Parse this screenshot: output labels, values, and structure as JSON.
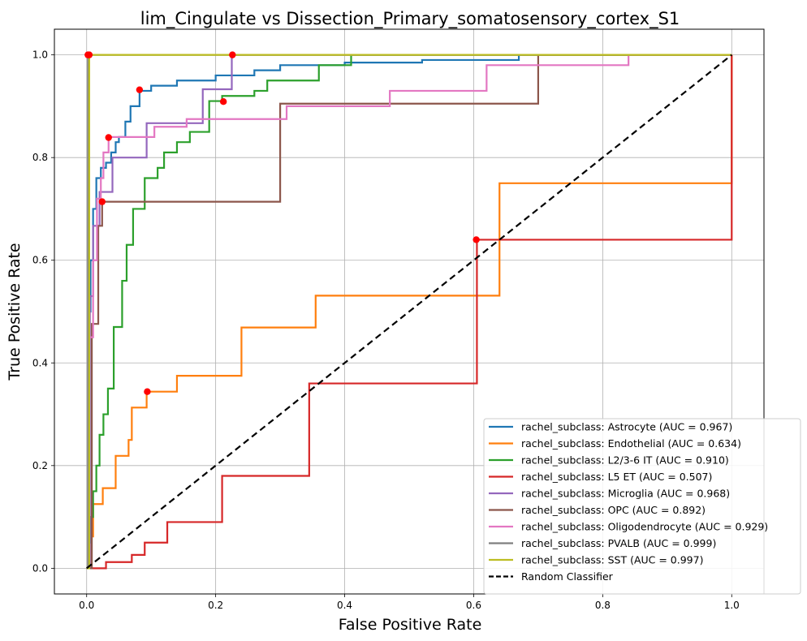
{
  "chart_data": {
    "type": "line",
    "title": "lim_Cingulate vs Dissection_Primary_somatosensory_cortex_S1",
    "xlabel": "False Positive Rate",
    "ylabel": "True Positive Rate",
    "xlim": [
      -0.05,
      1.05
    ],
    "ylim": [
      -0.05,
      1.05
    ],
    "xticks": [
      "0.0",
      "0.2",
      "0.4",
      "0.6",
      "0.8",
      "1.0"
    ],
    "yticks": [
      "0.0",
      "0.2",
      "0.4",
      "0.6",
      "0.8",
      "1.0"
    ],
    "grid": true,
    "legend_position": "lower-right",
    "series": [
      {
        "name": "rachel_subclass: Astrocyte (AUC = 0.967)",
        "color": "#1f77b4",
        "x": [
          0,
          0.003,
          0.003,
          0.006,
          0.006,
          0.01,
          0.01,
          0.015,
          0.015,
          0.022,
          0.022,
          0.03,
          0.03,
          0.038,
          0.038,
          0.045,
          0.045,
          0.05,
          0.05,
          0.06,
          0.06,
          0.068,
          0.068,
          0.082,
          0.082,
          0.1,
          0.1,
          0.14,
          0.14,
          0.2,
          0.2,
          0.26,
          0.26,
          0.3,
          0.3,
          0.4,
          0.4,
          0.52,
          0.52,
          0.67,
          0.67,
          1.0
        ],
        "y": [
          0,
          0,
          0.5,
          0.5,
          0.6,
          0.6,
          0.7,
          0.7,
          0.76,
          0.76,
          0.78,
          0.78,
          0.79,
          0.79,
          0.81,
          0.81,
          0.83,
          0.83,
          0.84,
          0.84,
          0.87,
          0.87,
          0.9,
          0.9,
          0.93,
          0.93,
          0.94,
          0.94,
          0.95,
          0.95,
          0.96,
          0.96,
          0.97,
          0.97,
          0.98,
          0.98,
          0.985,
          0.985,
          0.99,
          0.99,
          1.0,
          1.0
        ]
      },
      {
        "name": "rachel_subclass: Endothelial (AUC = 0.634)",
        "color": "#ff7f0e",
        "x": [
          0,
          0.005,
          0.005,
          0.01,
          0.01,
          0.025,
          0.025,
          0.045,
          0.045,
          0.065,
          0.065,
          0.07,
          0.07,
          0.093,
          0.093,
          0.14,
          0.14,
          0.24,
          0.24,
          0.355,
          0.355,
          0.64,
          0.64,
          1.0,
          1.0
        ],
        "y": [
          0,
          0,
          0.062,
          0.062,
          0.125,
          0.125,
          0.156,
          0.156,
          0.219,
          0.219,
          0.25,
          0.25,
          0.313,
          0.313,
          0.344,
          0.344,
          0.375,
          0.375,
          0.469,
          0.469,
          0.531,
          0.531,
          0.75,
          0.75,
          1.0
        ]
      },
      {
        "name": "rachel_subclass: L2/3-6 IT (AUC = 0.910)",
        "color": "#2ca02c",
        "x": [
          0,
          0.003,
          0.003,
          0.006,
          0.006,
          0.01,
          0.01,
          0.015,
          0.015,
          0.02,
          0.02,
          0.026,
          0.026,
          0.033,
          0.033,
          0.042,
          0.042,
          0.055,
          0.055,
          0.062,
          0.062,
          0.072,
          0.072,
          0.09,
          0.09,
          0.11,
          0.11,
          0.12,
          0.12,
          0.14,
          0.14,
          0.16,
          0.16,
          0.19,
          0.19,
          0.21,
          0.21,
          0.26,
          0.26,
          0.28,
          0.28,
          0.36,
          0.36,
          0.41,
          0.41,
          1.0
        ],
        "y": [
          0,
          0,
          0.05,
          0.05,
          0.1,
          0.1,
          0.15,
          0.15,
          0.2,
          0.2,
          0.26,
          0.26,
          0.3,
          0.3,
          0.35,
          0.35,
          0.47,
          0.47,
          0.56,
          0.56,
          0.63,
          0.63,
          0.7,
          0.7,
          0.76,
          0.76,
          0.78,
          0.78,
          0.81,
          0.81,
          0.83,
          0.83,
          0.85,
          0.85,
          0.91,
          0.91,
          0.92,
          0.92,
          0.93,
          0.93,
          0.95,
          0.95,
          0.98,
          0.98,
          1.0,
          1.0
        ]
      },
      {
        "name": "rachel_subclass: L5 ET (AUC = 0.507)",
        "color": "#d62728",
        "x": [
          0,
          0.03,
          0.03,
          0.07,
          0.07,
          0.09,
          0.09,
          0.125,
          0.125,
          0.21,
          0.21,
          0.345,
          0.345,
          0.605,
          0.605,
          1.0,
          1.0
        ],
        "y": [
          0,
          0,
          0.012,
          0.012,
          0.026,
          0.026,
          0.05,
          0.05,
          0.09,
          0.09,
          0.18,
          0.18,
          0.36,
          0.36,
          0.64,
          0.64,
          1.0
        ]
      },
      {
        "name": "rachel_subclass: Microglia (AUC = 0.968)",
        "color": "#9467bd",
        "x": [
          0,
          0.005,
          0.005,
          0.01,
          0.01,
          0.02,
          0.02,
          0.04,
          0.04,
          0.046,
          0.046,
          0.093,
          0.093,
          0.18,
          0.18,
          0.225,
          0.225,
          1.0
        ],
        "y": [
          0,
          0,
          0.53,
          0.53,
          0.667,
          0.667,
          0.733,
          0.733,
          0.8,
          0.8,
          0.8,
          0.8,
          0.867,
          0.867,
          0.933,
          0.933,
          1.0,
          1.0
        ]
      },
      {
        "name": "rachel_subclass: OPC (AUC = 0.892)",
        "color": "#8c564b",
        "x": [
          0,
          0.008,
          0.008,
          0.018,
          0.018,
          0.024,
          0.024,
          0.3,
          0.3,
          0.7,
          0.7,
          1.0
        ],
        "y": [
          0,
          0,
          0.476,
          0.476,
          0.667,
          0.667,
          0.714,
          0.714,
          0.905,
          0.905,
          1.0,
          1.0
        ]
      },
      {
        "name": "rachel_subclass: Oligodendrocyte (AUC = 0.929)",
        "color": "#e377c2",
        "x": [
          0,
          0.004,
          0.004,
          0.01,
          0.01,
          0.016,
          0.016,
          0.022,
          0.022,
          0.026,
          0.026,
          0.034,
          0.034,
          0.07,
          0.07,
          0.105,
          0.105,
          0.155,
          0.155,
          0.31,
          0.31,
          0.47,
          0.47,
          0.62,
          0.62,
          0.84,
          0.84,
          1.0
        ],
        "y": [
          0,
          0,
          0.45,
          0.45,
          0.6,
          0.6,
          0.72,
          0.72,
          0.76,
          0.76,
          0.81,
          0.81,
          0.84,
          0.84,
          0.84,
          0.84,
          0.86,
          0.86,
          0.875,
          0.875,
          0.9,
          0.9,
          0.93,
          0.93,
          0.98,
          0.98,
          1.0,
          1.0
        ]
      },
      {
        "name": "rachel_subclass: PVALB (AUC = 0.999)",
        "color": "#7f7f7f",
        "x": [
          0,
          0.002,
          0.002,
          1.0
        ],
        "y": [
          0,
          0,
          1.0,
          1.0
        ]
      },
      {
        "name": "rachel_subclass: SST (AUC = 0.997)",
        "color": "#bcbd22",
        "x": [
          0,
          0.004,
          0.004,
          1.0
        ],
        "y": [
          0,
          0,
          1.0,
          1.0
        ]
      }
    ],
    "random_classifier": {
      "name": "Random Classifier",
      "color": "#000000",
      "x": [
        0,
        1
      ],
      "y": [
        0,
        1
      ]
    },
    "optimal_points": {
      "color": "#ff0000",
      "points": [
        {
          "x": 0.082,
          "y": 0.932
        },
        {
          "x": 0.094,
          "y": 0.344
        },
        {
          "x": 0.212,
          "y": 0.909
        },
        {
          "x": 0.604,
          "y": 0.64
        },
        {
          "x": 0.226,
          "y": 1.0
        },
        {
          "x": 0.024,
          "y": 0.714
        },
        {
          "x": 0.034,
          "y": 0.839
        },
        {
          "x": 0.002,
          "y": 1.0
        },
        {
          "x": 0.004,
          "y": 1.0
        }
      ]
    }
  }
}
